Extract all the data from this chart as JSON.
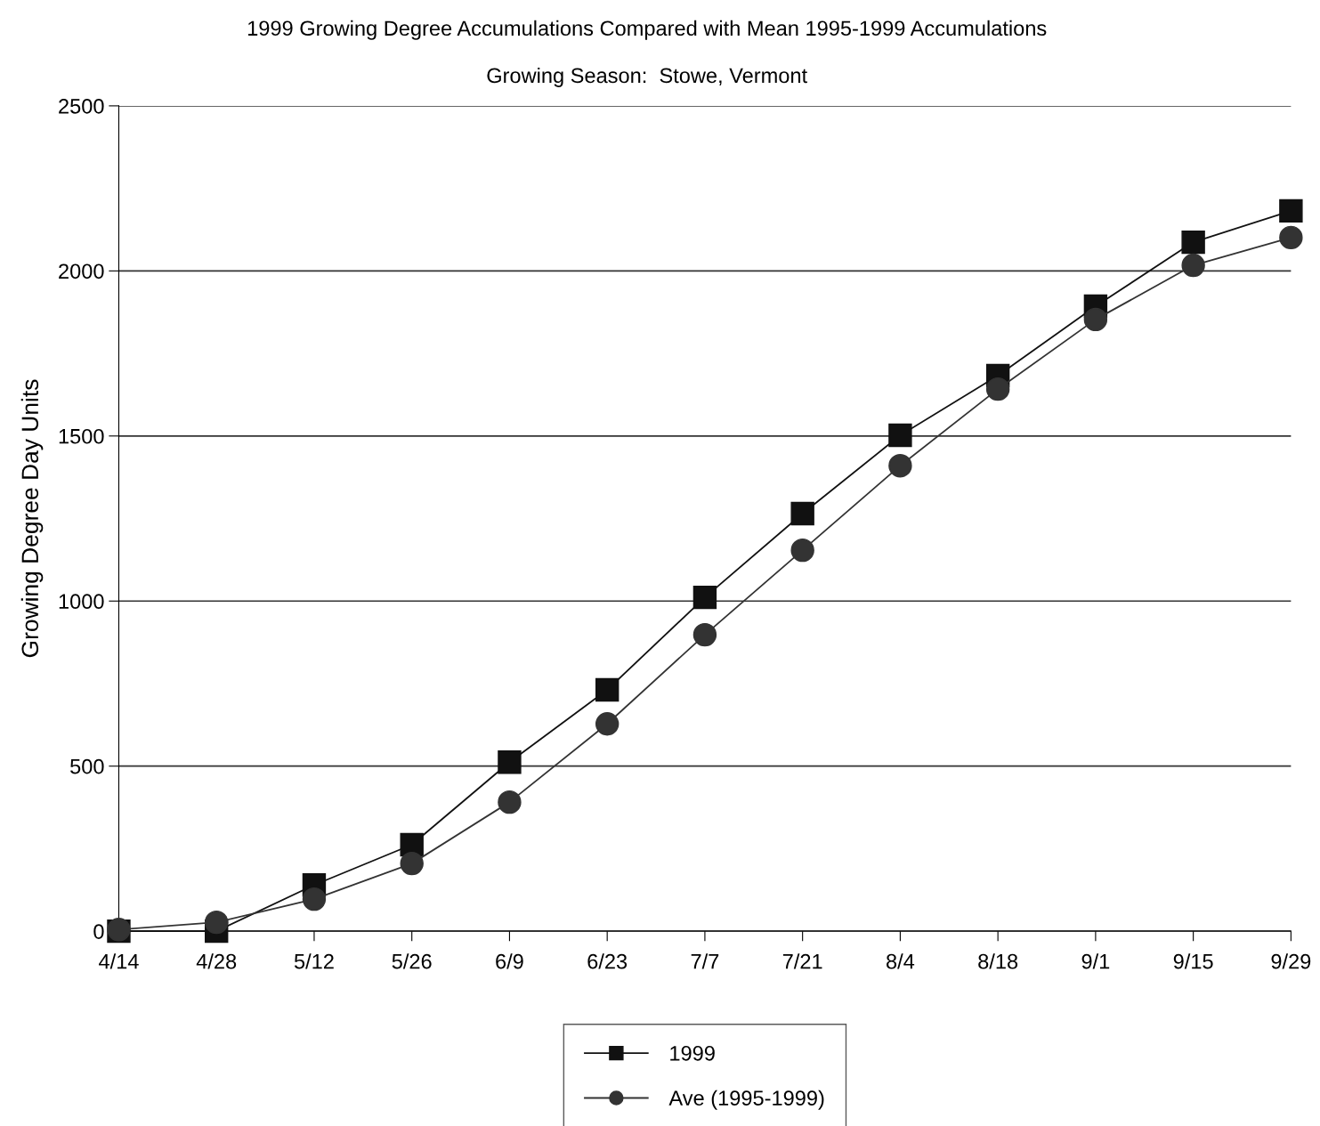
{
  "chart_data": {
    "type": "line",
    "title": "1999 Growing Degree Accumulations Compared with Mean 1995-1999 Accumulations",
    "subtitle": "Growing Season:  Stowe, Vermont",
    "ylabel": "Growing Degree Day Units",
    "categories": [
      "4/14",
      "4/28",
      "5/12",
      "5/26",
      "6/9",
      "6/23",
      "7/7",
      "7/21",
      "8/4",
      "8/18",
      "9/1",
      "9/15",
      "9/29"
    ],
    "series": [
      {
        "name": "1999",
        "color": "#111111",
        "marker": "square",
        "values": [
          0,
          0,
          140,
          262,
          512,
          731,
          1011,
          1265,
          1502,
          1683,
          1893,
          2087,
          2182
        ]
      },
      {
        "name": "Ave (1995-1999)",
        "color": "#333333",
        "marker": "circle",
        "values": [
          5,
          27,
          97,
          205,
          391,
          628,
          898,
          1154,
          1410,
          1642,
          1853,
          2017,
          2101
        ]
      }
    ],
    "ylim": [
      0,
      2500
    ],
    "yticks": [
      0,
      500,
      1000,
      1500,
      2000,
      2500
    ],
    "grid": "y",
    "legend": "bottom",
    "line_style": "solid"
  }
}
